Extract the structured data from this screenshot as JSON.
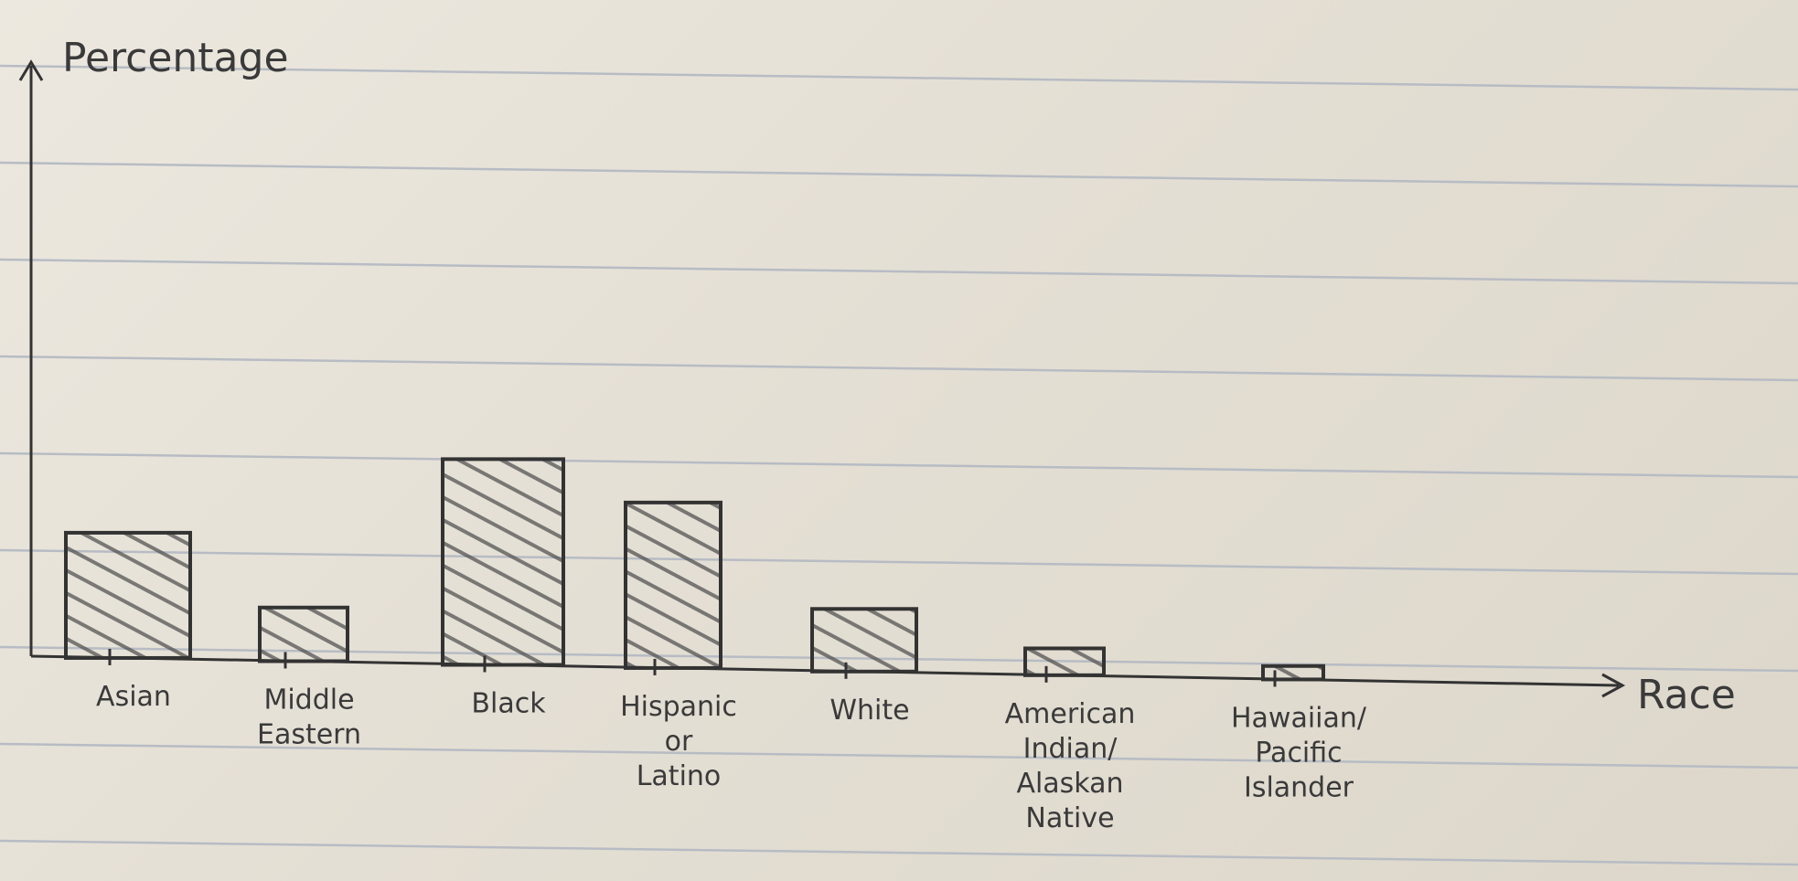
{
  "chart_data": {
    "type": "bar",
    "ylabel": "Percentage",
    "xlabel": "Race",
    "categories": [
      [
        "Asian"
      ],
      [
        "Middle",
        "Eastern"
      ],
      [
        "Black"
      ],
      [
        "Hispanic",
        "or",
        "Latino"
      ],
      [
        "White"
      ],
      [
        "American",
        "Indian/",
        "Alaskan",
        "Native"
      ],
      [
        "Hawaiian/",
        "Pacific",
        "Islander"
      ]
    ],
    "values": [
      14,
      6,
      23,
      18.5,
      7,
      3,
      1.5
    ],
    "ylim": [
      0,
      66
    ],
    "grid": false,
    "legend": "none",
    "colors": {
      "ink": "#333333",
      "paper": "#e6e1d6",
      "rule": "#b7bcc4"
    }
  }
}
